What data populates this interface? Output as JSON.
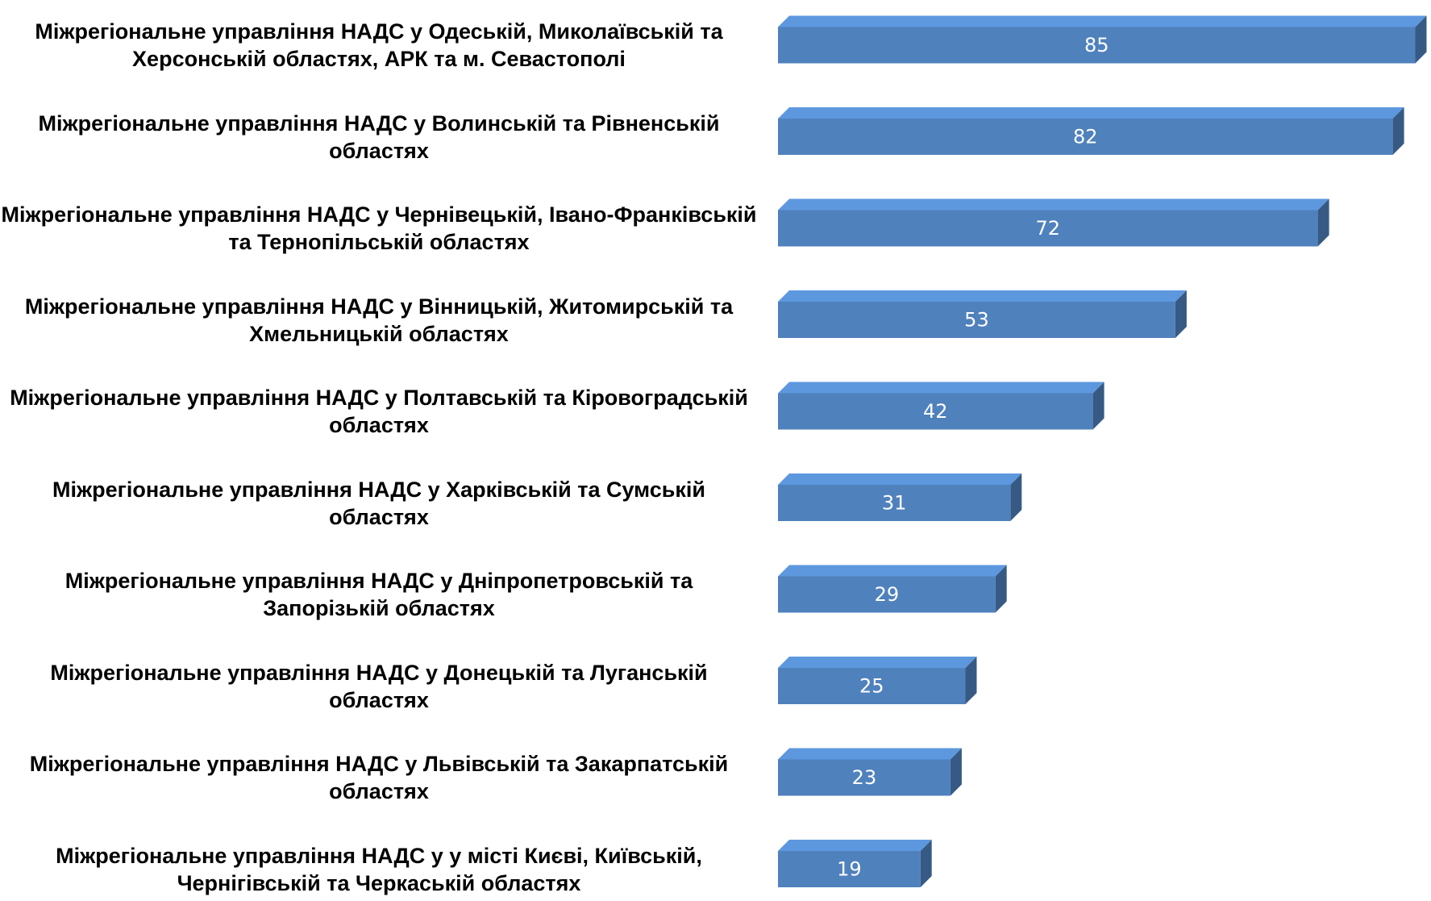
{
  "chart_data": {
    "type": "bar",
    "orientation": "horizontal",
    "categories": [
      "Міжрегіональне управління НАДС у Одеській, Миколаївській та Херсонській областях, АРК та м. Севастополі",
      "Міжрегіональне управління НАДС у Волинській та Рівненській областях",
      "Міжрегіональне управління НАДС у Чернівецькій, Івано-Франківській та Тернопільській областях",
      "Міжрегіональне управління НАДС у Вінницькій, Житомирській та Хмельницькій областях",
      "Міжрегіональне управління НАДС у Полтавській та Кіровоградській областях",
      "Міжрегіональне управління НАДС у Харківській та Сумській областях",
      "Міжрегіональне управління НАДС у Дніпропетровській та Запорізькій областях",
      "Міжрегіональне управління НАДС у Донецькій та Луганській областях",
      "Міжрегіональне управління НАДС у Львівській та Закарпатській областях",
      "Міжрегіональне управління НАДС у у місті Києві, Київській, Чернігівській та Черкаській областях"
    ],
    "values": [
      85,
      82,
      72,
      53,
      42,
      31,
      29,
      25,
      23,
      19
    ],
    "color": "#4f81bd"
  }
}
